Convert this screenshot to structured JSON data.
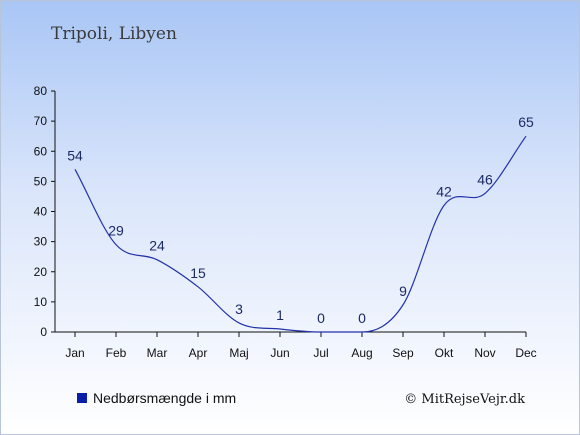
{
  "title": "Tripoli, Libyen",
  "legend": {
    "label": "Nedbørsmængde i mm",
    "color": "#0a1fa8"
  },
  "credit": "© MitRejseVejr.dk",
  "colors": {
    "line": "#2233aa",
    "axis": "#111111"
  },
  "chart_data": {
    "type": "line",
    "categories": [
      "Jan",
      "Feb",
      "Mar",
      "Apr",
      "Maj",
      "Jun",
      "Jul",
      "Aug",
      "Sep",
      "Okt",
      "Nov",
      "Dec"
    ],
    "series": [
      {
        "name": "Nedbørsmængde i mm",
        "values": [
          54,
          29,
          24,
          15,
          3,
          1,
          0,
          0,
          9,
          42,
          46,
          65
        ]
      }
    ],
    "yticks": [
      0,
      10,
      20,
      30,
      40,
      50,
      60,
      70,
      80
    ],
    "ylim": [
      0,
      80
    ],
    "grid": false,
    "legend_position": "bottom-left",
    "data_labels": true
  }
}
